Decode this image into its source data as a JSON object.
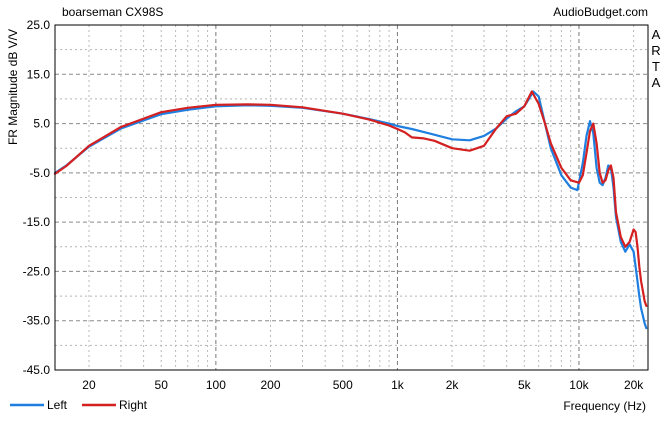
{
  "chart_data": {
    "type": "line",
    "title": "boarseman CX98S",
    "source": "AudioBudget.com",
    "side_label": [
      "A",
      "R",
      "T",
      "A"
    ],
    "ylabel": "FR Magnitude dB V/V",
    "xlabel": "Frequency (Hz)",
    "x_scale": "log",
    "xlim": [
      13,
      24000
    ],
    "ylim": [
      -45,
      25
    ],
    "y_ticks": [
      25.0,
      15.0,
      5.0,
      -5.0,
      -15.0,
      -25.0,
      -35.0,
      -45.0
    ],
    "y_tick_labels": [
      "25.0",
      "15.0",
      "5.0",
      "-5.0",
      "-15.0",
      "-25.0",
      "-35.0",
      "-45.0"
    ],
    "x_ticks": [
      20,
      50,
      100,
      200,
      500,
      1000,
      2000,
      5000,
      10000,
      20000
    ],
    "x_tick_labels": [
      "20",
      "50",
      "100",
      "200",
      "500",
      "1k",
      "2k",
      "5k",
      "10k",
      "20k"
    ],
    "grid": true,
    "legend_position": "bottom-left",
    "series": [
      {
        "name": "Left",
        "color": "#1f7fe0",
        "x": [
          13,
          15,
          20,
          30,
          50,
          70,
          100,
          150,
          200,
          300,
          500,
          700,
          900,
          1000,
          1200,
          1500,
          2000,
          2500,
          3000,
          3500,
          4000,
          4500,
          5000,
          5300,
          5600,
          6000,
          6500,
          7000,
          8000,
          9000,
          9800,
          10500,
          11000,
          11500,
          12000,
          12500,
          13000,
          13500,
          14000,
          14500,
          15000,
          15500,
          16000,
          17000,
          18000,
          19000,
          20000,
          20500,
          21000,
          21500,
          22000,
          22500,
          23000,
          23500
        ],
        "y": [
          -5.0,
          -3.5,
          0.3,
          4.0,
          6.9,
          7.8,
          8.5,
          8.7,
          8.6,
          8.2,
          7.0,
          5.9,
          5.0,
          4.5,
          3.9,
          3.0,
          1.8,
          1.6,
          2.5,
          4.0,
          6.0,
          7.5,
          8.5,
          10.0,
          11.5,
          10.5,
          5.0,
          0.0,
          -5.5,
          -8.0,
          -8.5,
          -3.0,
          2.5,
          5.5,
          3.0,
          -4.0,
          -7.0,
          -7.5,
          -6.0,
          -3.5,
          -4.0,
          -8.0,
          -14.0,
          -19.0,
          -21.0,
          -19.5,
          -21.0,
          -24.0,
          -27.0,
          -30.0,
          -32.5,
          -34.0,
          -35.5,
          -36.5
        ]
      },
      {
        "name": "Right",
        "color": "#d42020",
        "x": [
          13,
          15,
          20,
          30,
          50,
          70,
          100,
          150,
          200,
          300,
          500,
          700,
          900,
          1000,
          1100,
          1200,
          1400,
          1600,
          2000,
          2500,
          3000,
          3500,
          4000,
          4500,
          5000,
          5500,
          6000,
          6500,
          7000,
          8000,
          9000,
          10000,
          10500,
          11000,
          11500,
          12000,
          12500,
          13000,
          13500,
          14000,
          14500,
          15000,
          15500,
          16000,
          17000,
          18000,
          19000,
          20000,
          20500,
          21000,
          21500,
          22000,
          22500,
          23000,
          23500
        ],
        "y": [
          -5.2,
          -3.6,
          0.5,
          4.3,
          7.3,
          8.2,
          8.8,
          8.9,
          8.8,
          8.3,
          7.0,
          5.8,
          4.6,
          3.9,
          3.2,
          2.2,
          2.0,
          1.5,
          0.0,
          -0.5,
          0.5,
          4.0,
          6.5,
          7.0,
          8.5,
          11.5,
          9.0,
          5.0,
          1.0,
          -4.0,
          -6.5,
          -7.0,
          -5.5,
          -1.0,
          3.5,
          5.0,
          1.0,
          -5.0,
          -7.0,
          -6.5,
          -4.5,
          -3.5,
          -6.0,
          -13.0,
          -18.0,
          -20.0,
          -19.0,
          -16.5,
          -17.0,
          -20.0,
          -24.0,
          -27.0,
          -29.0,
          -31.0,
          -32.0
        ]
      }
    ]
  }
}
